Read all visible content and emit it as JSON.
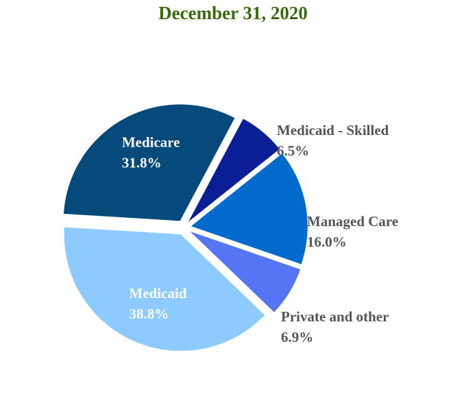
{
  "chart_data": {
    "type": "pie",
    "title": "December 31, 2020",
    "title_color": "#3a6b0e",
    "label_dark_color": "#555555",
    "label_light_color": "#ffffff",
    "slices": [
      {
        "label": "Medicaid - Skilled",
        "value": 6.5,
        "value_label": "6.5%",
        "color": "#0a1f96",
        "label_inside": false
      },
      {
        "label": "Managed Care",
        "value": 16.0,
        "value_label": "16.0%",
        "color": "#006bcc",
        "label_inside": false
      },
      {
        "label": "Private and other",
        "value": 6.9,
        "value_label": "6.9%",
        "color": "#5575f5",
        "label_inside": false
      },
      {
        "label": "Medicaid",
        "value": 38.8,
        "value_label": "38.8%",
        "color": "#8ccaff",
        "label_inside": true
      },
      {
        "label": "Medicare",
        "value": 31.8,
        "value_label": "31.8%",
        "color": "#064a7c",
        "label_inside": true
      }
    ]
  }
}
